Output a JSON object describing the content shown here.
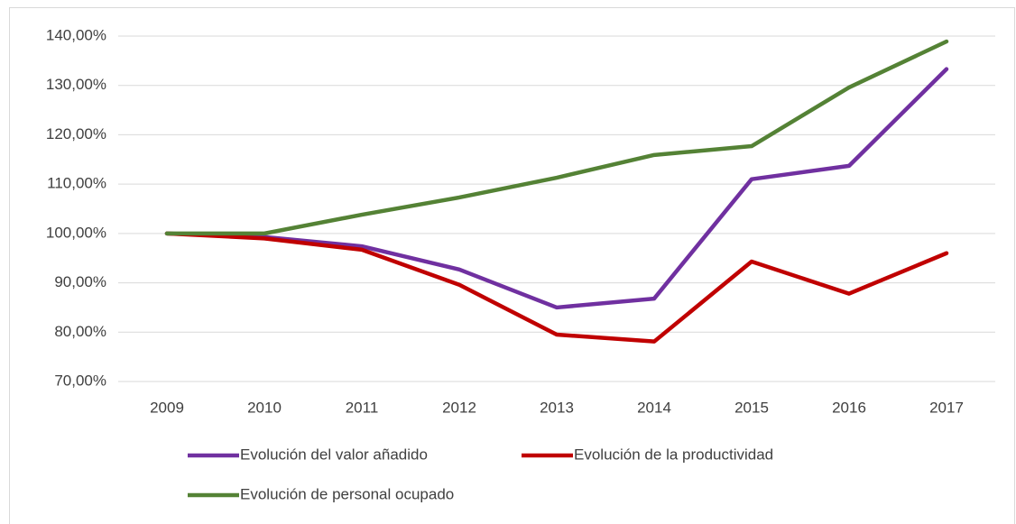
{
  "chart_data": {
    "type": "line",
    "categories": [
      "2009",
      "2010",
      "2011",
      "2012",
      "2013",
      "2014",
      "2015",
      "2016",
      "2017"
    ],
    "series": [
      {
        "name": "Evolución del valor añadido",
        "color": "#7030a0",
        "values": [
          100,
          99.3,
          97.4,
          92.7,
          85.0,
          86.8,
          111.0,
          113.7,
          133.3
        ]
      },
      {
        "name": "Evolución de la productividad",
        "color": "#c00000",
        "values": [
          100,
          99.0,
          96.7,
          89.6,
          79.5,
          78.1,
          94.3,
          87.8,
          96.0
        ]
      },
      {
        "name": "Evolución de personal ocupado",
        "color": "#548235",
        "values": [
          100,
          100,
          103.8,
          107.3,
          111.3,
          115.9,
          117.7,
          129.6,
          138.9
        ]
      }
    ],
    "ylim": [
      70,
      140
    ],
    "yticks": [
      {
        "value": 70,
        "label": "70,00%"
      },
      {
        "value": 80,
        "label": "80,00%"
      },
      {
        "value": 90,
        "label": "90,00%"
      },
      {
        "value": 100,
        "label": "100,00%"
      },
      {
        "value": 110,
        "label": "110,00%"
      },
      {
        "value": 120,
        "label": "120,00%"
      },
      {
        "value": 130,
        "label": "130,00%"
      },
      {
        "value": 140,
        "label": "140,00%"
      }
    ],
    "grid": true,
    "legend": "bottom"
  }
}
